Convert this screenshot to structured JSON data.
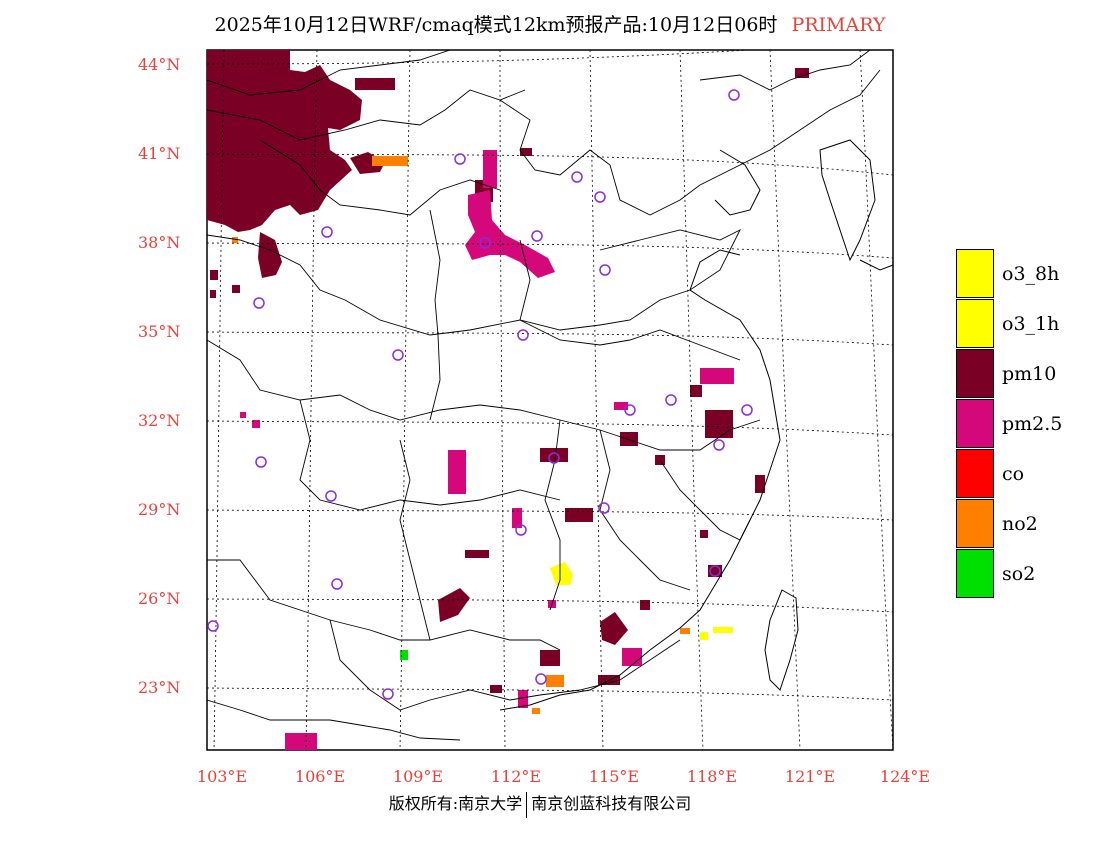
{
  "title": {
    "main": "2025年10月12日WRF/cmaq模式12km预报产品:10月12日06时",
    "tag": "PRIMARY"
  },
  "axes": {
    "lat_labels": [
      "44°N",
      "41°N",
      "38°N",
      "35°N",
      "32°N",
      "29°N",
      "26°N",
      "23°N"
    ],
    "lon_labels": [
      "103°E",
      "106°E",
      "109°E",
      "112°E",
      "115°E",
      "118°E",
      "121°E",
      "124°E"
    ]
  },
  "legend": [
    {
      "label": "o3_8h",
      "color": "#ffff00"
    },
    {
      "label": "o3_1h",
      "color": "#ffff00"
    },
    {
      "label": "pm10",
      "color": "#7a0026"
    },
    {
      "label": "pm2.5",
      "color": "#d4087a"
    },
    {
      "label": "co",
      "color": "#ff0000"
    },
    {
      "label": "no2",
      "color": "#ff8000"
    },
    {
      "label": "so2",
      "color": "#00e000"
    }
  ],
  "footer": {
    "left": "版权所有:南京大学",
    "right": "南京创蓝科技有限公司"
  },
  "colors": {
    "accent": "#e8413a",
    "pm10": "#7a0026",
    "pm25": "#d4087a",
    "no2": "#ff8000",
    "o3": "#ffff00",
    "so2": "#00e000",
    "station": "#8a2be2"
  }
}
